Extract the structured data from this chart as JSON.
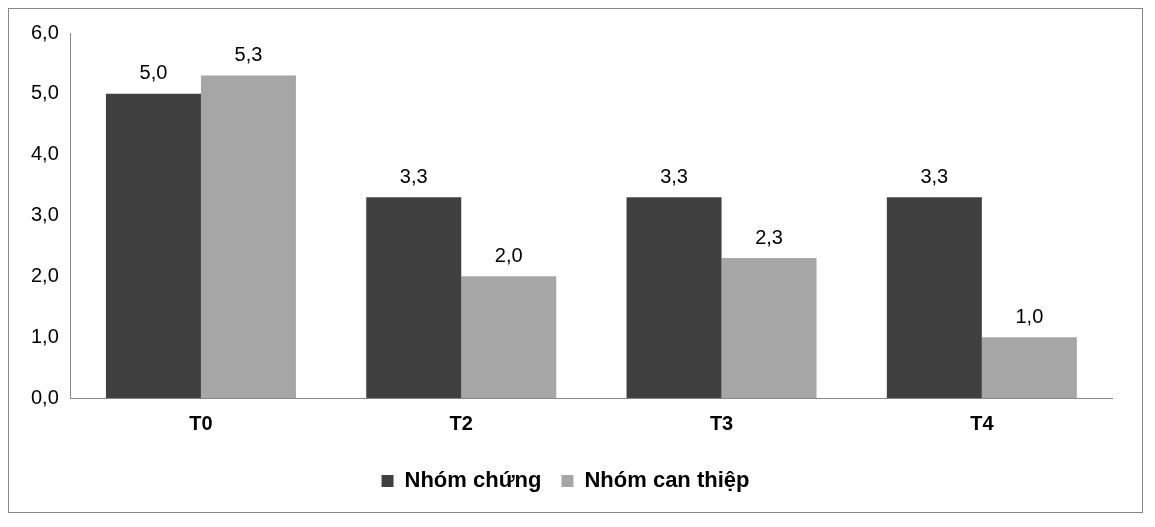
{
  "chart_data": {
    "type": "bar",
    "categories": [
      "T0",
      "T2",
      "T3",
      "T4"
    ],
    "series": [
      {
        "name": "Nhóm chứng",
        "color": "#404040",
        "values": [
          5.0,
          3.3,
          3.3,
          3.3
        ],
        "value_labels": [
          "5,0",
          "3,3",
          "3,3",
          "3,3"
        ]
      },
      {
        "name": "Nhóm can thiệp",
        "color": "#a6a6a6",
        "values": [
          5.3,
          2.0,
          2.3,
          1.0
        ],
        "value_labels": [
          "5,3",
          "2,0",
          "2,3",
          "1,0"
        ]
      }
    ],
    "ylim": [
      0,
      6
    ],
    "yticks": [
      {
        "value": 0,
        "label": "0,0"
      },
      {
        "value": 1,
        "label": "1,0"
      },
      {
        "value": 2,
        "label": "2,0"
      },
      {
        "value": 3,
        "label": "3,0"
      },
      {
        "value": 4,
        "label": "4,0"
      },
      {
        "value": 5,
        "label": "5,0"
      },
      {
        "value": 6,
        "label": "6,0"
      }
    ],
    "grid": false,
    "legend": "bottom"
  }
}
